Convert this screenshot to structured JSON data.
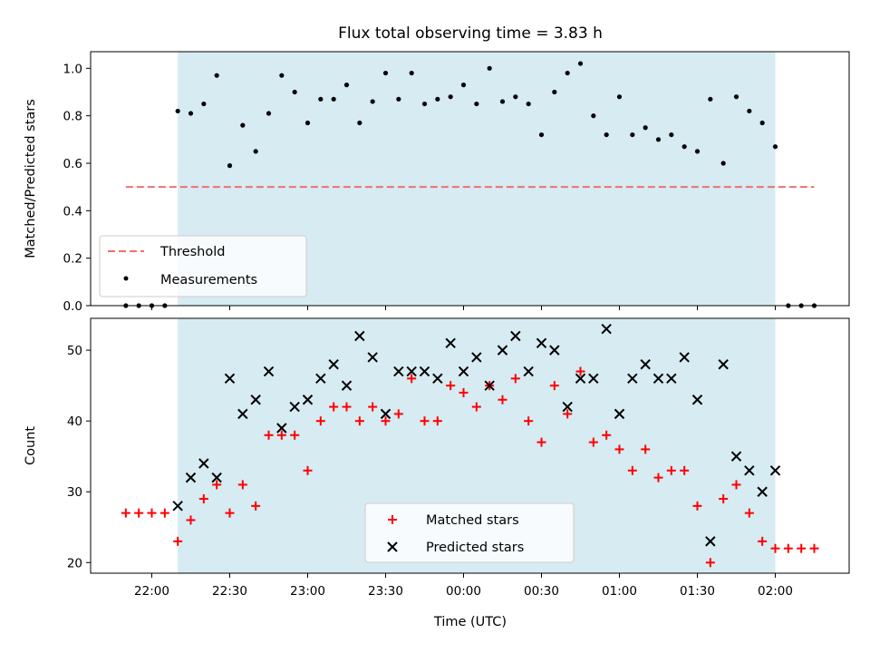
{
  "chart_data": {
    "title": "Flux total observing time = 3.83 h",
    "xlabel": "Time (UTC)",
    "x_ticks": [
      "22:00",
      "22:30",
      "23:00",
      "23:30",
      "00:00",
      "00:30",
      "01:00",
      "01:30",
      "02:00"
    ],
    "observing_window": {
      "start": "22:10",
      "end": "02:00",
      "color": "#add8e6"
    },
    "panels": [
      {
        "type": "scatter",
        "ylabel": "Matched/Predicted stars",
        "ylim": [
          0,
          1.07
        ],
        "yticks": [
          "0.0",
          "0.2",
          "0.4",
          "0.6",
          "0.8",
          "1.0"
        ],
        "legend_position": "lower-left",
        "threshold": {
          "name": "Threshold",
          "value": 0.5,
          "x_range": [
            "21:50",
            "02:15"
          ],
          "color": "#f07070"
        },
        "series": [
          {
            "name": "Measurements",
            "color": "#000000",
            "marker": "dot",
            "points": [
              [
                "21:50",
                0.0
              ],
              [
                "21:55",
                0.0
              ],
              [
                "22:00",
                0.0
              ],
              [
                "22:05",
                0.0
              ],
              [
                "22:10",
                0.82
              ],
              [
                "22:15",
                0.81
              ],
              [
                "22:20",
                0.85
              ],
              [
                "22:25",
                0.97
              ],
              [
                "22:30",
                0.59
              ],
              [
                "22:35",
                0.76
              ],
              [
                "22:40",
                0.65
              ],
              [
                "22:45",
                0.81
              ],
              [
                "22:50",
                0.97
              ],
              [
                "22:55",
                0.9
              ],
              [
                "23:00",
                0.77
              ],
              [
                "23:05",
                0.87
              ],
              [
                "23:10",
                0.87
              ],
              [
                "23:15",
                0.93
              ],
              [
                "23:20",
                0.77
              ],
              [
                "23:25",
                0.86
              ],
              [
                "23:30",
                0.98
              ],
              [
                "23:35",
                0.87
              ],
              [
                "23:40",
                0.98
              ],
              [
                "23:45",
                0.85
              ],
              [
                "23:50",
                0.87
              ],
              [
                "23:55",
                0.88
              ],
              [
                "00:00",
                0.93
              ],
              [
                "00:05",
                0.85
              ],
              [
                "00:10",
                1.0
              ],
              [
                "00:15",
                0.86
              ],
              [
                "00:20",
                0.88
              ],
              [
                "00:25",
                0.85
              ],
              [
                "00:30",
                0.72
              ],
              [
                "00:35",
                0.9
              ],
              [
                "00:40",
                0.98
              ],
              [
                "00:45",
                1.02
              ],
              [
                "00:50",
                0.8
              ],
              [
                "00:55",
                0.72
              ],
              [
                "01:00",
                0.88
              ],
              [
                "01:05",
                0.72
              ],
              [
                "01:10",
                0.75
              ],
              [
                "01:15",
                0.7
              ],
              [
                "01:20",
                0.72
              ],
              [
                "01:25",
                0.67
              ],
              [
                "01:30",
                0.65
              ],
              [
                "01:35",
                0.87
              ],
              [
                "01:40",
                0.6
              ],
              [
                "01:45",
                0.88
              ],
              [
                "01:50",
                0.82
              ],
              [
                "01:55",
                0.77
              ],
              [
                "02:00",
                0.67
              ],
              [
                "02:05",
                0.0
              ],
              [
                "02:10",
                0.0
              ],
              [
                "02:15",
                0.0
              ]
            ]
          }
        ]
      },
      {
        "type": "scatter",
        "ylabel": "Count",
        "ylim": [
          18.5,
          54.5
        ],
        "yticks": [
          "20",
          "30",
          "40",
          "50"
        ],
        "legend_position": "lower-center",
        "series": [
          {
            "name": "Matched stars",
            "color": "#ff0000",
            "marker": "plus",
            "points": [
              [
                "21:50",
                27
              ],
              [
                "21:55",
                27
              ],
              [
                "22:00",
                27
              ],
              [
                "22:05",
                27
              ],
              [
                "22:10",
                23
              ],
              [
                "22:15",
                26
              ],
              [
                "22:20",
                29
              ],
              [
                "22:25",
                31
              ],
              [
                "22:30",
                27
              ],
              [
                "22:35",
                31
              ],
              [
                "22:40",
                28
              ],
              [
                "22:45",
                38
              ],
              [
                "22:50",
                38
              ],
              [
                "22:55",
                38
              ],
              [
                "23:00",
                33
              ],
              [
                "23:05",
                40
              ],
              [
                "23:10",
                42
              ],
              [
                "23:15",
                42
              ],
              [
                "23:20",
                40
              ],
              [
                "23:25",
                42
              ],
              [
                "23:30",
                40
              ],
              [
                "23:35",
                41
              ],
              [
                "23:40",
                46
              ],
              [
                "23:45",
                40
              ],
              [
                "23:50",
                40
              ],
              [
                "23:55",
                45
              ],
              [
                "00:00",
                44
              ],
              [
                "00:05",
                42
              ],
              [
                "00:10",
                45
              ],
              [
                "00:15",
                43
              ],
              [
                "00:20",
                46
              ],
              [
                "00:25",
                40
              ],
              [
                "00:30",
                37
              ],
              [
                "00:35",
                45
              ],
              [
                "00:40",
                41
              ],
              [
                "00:45",
                47
              ],
              [
                "00:50",
                37
              ],
              [
                "00:55",
                38
              ],
              [
                "01:00",
                36
              ],
              [
                "01:05",
                33
              ],
              [
                "01:10",
                36
              ],
              [
                "01:15",
                32
              ],
              [
                "01:20",
                33
              ],
              [
                "01:25",
                33
              ],
              [
                "01:30",
                28
              ],
              [
                "01:35",
                20
              ],
              [
                "01:40",
                29
              ],
              [
                "01:45",
                31
              ],
              [
                "01:50",
                27
              ],
              [
                "01:55",
                23
              ],
              [
                "02:00",
                22
              ],
              [
                "02:05",
                22
              ],
              [
                "02:10",
                22
              ],
              [
                "02:15",
                22
              ]
            ]
          },
          {
            "name": "Predicted stars",
            "color": "#000000",
            "marker": "x",
            "points": [
              [
                "22:10",
                28
              ],
              [
                "22:15",
                32
              ],
              [
                "22:20",
                34
              ],
              [
                "22:25",
                32
              ],
              [
                "22:30",
                46
              ],
              [
                "22:35",
                41
              ],
              [
                "22:40",
                43
              ],
              [
                "22:45",
                47
              ],
              [
                "22:50",
                39
              ],
              [
                "22:55",
                42
              ],
              [
                "23:00",
                43
              ],
              [
                "23:05",
                46
              ],
              [
                "23:10",
                48
              ],
              [
                "23:15",
                45
              ],
              [
                "23:20",
                52
              ],
              [
                "23:25",
                49
              ],
              [
                "23:30",
                41
              ],
              [
                "23:35",
                47
              ],
              [
                "23:40",
                47
              ],
              [
                "23:45",
                47
              ],
              [
                "23:50",
                46
              ],
              [
                "23:55",
                51
              ],
              [
                "00:00",
                47
              ],
              [
                "00:05",
                49
              ],
              [
                "00:10",
                45
              ],
              [
                "00:15",
                50
              ],
              [
                "00:20",
                52
              ],
              [
                "00:25",
                47
              ],
              [
                "00:30",
                51
              ],
              [
                "00:35",
                50
              ],
              [
                "00:40",
                42
              ],
              [
                "00:45",
                46
              ],
              [
                "00:50",
                46
              ],
              [
                "00:55",
                53
              ],
              [
                "01:00",
                41
              ],
              [
                "01:05",
                46
              ],
              [
                "01:10",
                48
              ],
              [
                "01:15",
                46
              ],
              [
                "01:20",
                46
              ],
              [
                "01:25",
                49
              ],
              [
                "01:30",
                43
              ],
              [
                "01:35",
                23
              ],
              [
                "01:40",
                48
              ],
              [
                "01:45",
                35
              ],
              [
                "01:50",
                33
              ],
              [
                "01:55",
                30
              ],
              [
                "02:00",
                33
              ]
            ]
          }
        ]
      }
    ]
  }
}
